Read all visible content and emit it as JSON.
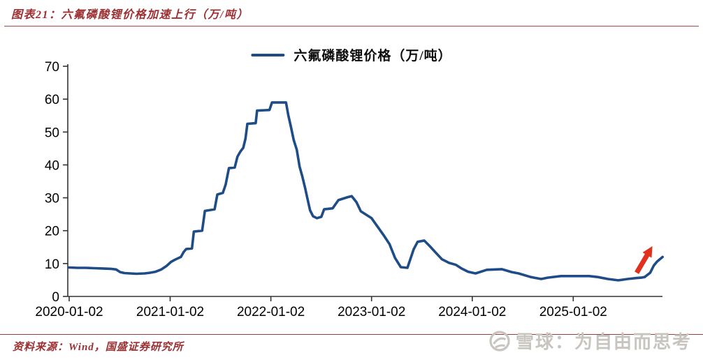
{
  "header": {
    "title": "图表21：六氟磷酸锂价格加速上行（万/吨）"
  },
  "footer": {
    "source": "资料来源：Wind，国盛证券研究所",
    "watermark": "雪球：为自由而思考"
  },
  "colors": {
    "series_line": "#1e4c86",
    "title_red": "#9c2f31",
    "arrow_red": "#e0301e",
    "axis": "#333333",
    "rule_red": "#a04a4a",
    "watermark_gray": "#c8c4bf"
  },
  "chart_data": {
    "type": "line",
    "title": "图表21：六氟磷酸锂价格加速上行（万/吨）",
    "legend": "六氟磷酸锂价格（万/吨）",
    "legend_position": "top-center",
    "grid": false,
    "ylim": [
      0,
      70
    ],
    "y_ticks": [
      0,
      10,
      20,
      30,
      40,
      50,
      60,
      70
    ],
    "x_ticks": [
      "2020-01-02",
      "2021-01-02",
      "2022-01-02",
      "2023-01-02",
      "2024-01-02",
      "2025-01-02"
    ],
    "series": [
      {
        "name": "六氟磷酸锂价格（万/吨）",
        "points": [
          [
            "2020-01-02",
            8.8
          ],
          [
            "2020-02-01",
            8.7
          ],
          [
            "2020-03-01",
            8.7
          ],
          [
            "2020-04-01",
            8.6
          ],
          [
            "2020-05-01",
            8.5
          ],
          [
            "2020-06-01",
            8.4
          ],
          [
            "2020-06-20",
            8.2
          ],
          [
            "2020-07-05",
            7.4
          ],
          [
            "2020-07-20",
            7.1
          ],
          [
            "2020-08-10",
            7.0
          ],
          [
            "2020-09-01",
            6.9
          ],
          [
            "2020-10-01",
            7.0
          ],
          [
            "2020-10-20",
            7.2
          ],
          [
            "2020-11-10",
            7.5
          ],
          [
            "2020-12-01",
            8.2
          ],
          [
            "2020-12-20",
            9.3
          ],
          [
            "2021-01-05",
            10.5
          ],
          [
            "2021-01-20",
            11.2
          ],
          [
            "2021-02-10",
            12.0
          ],
          [
            "2021-02-20",
            13.5
          ],
          [
            "2021-03-01",
            14.4
          ],
          [
            "2021-03-22",
            14.6
          ],
          [
            "2021-03-29",
            19.7
          ],
          [
            "2021-04-28",
            20.0
          ],
          [
            "2021-05-08",
            26.0
          ],
          [
            "2021-06-12",
            26.5
          ],
          [
            "2021-06-22",
            31.0
          ],
          [
            "2021-07-12",
            31.5
          ],
          [
            "2021-07-22",
            34.0
          ],
          [
            "2021-08-03",
            39.0
          ],
          [
            "2021-08-24",
            39.2
          ],
          [
            "2021-09-03",
            42.5
          ],
          [
            "2021-09-13",
            44.0
          ],
          [
            "2021-09-24",
            45.2
          ],
          [
            "2021-10-02",
            48.0
          ],
          [
            "2021-10-09",
            52.5
          ],
          [
            "2021-11-08",
            52.7
          ],
          [
            "2021-11-13",
            56.5
          ],
          [
            "2021-12-28",
            56.7
          ],
          [
            "2022-01-06",
            59.0
          ],
          [
            "2022-02-26",
            59.0
          ],
          [
            "2022-03-06",
            55.2
          ],
          [
            "2022-03-16",
            51.5
          ],
          [
            "2022-03-26",
            47.5
          ],
          [
            "2022-04-06",
            44.6
          ],
          [
            "2022-04-16",
            39.5
          ],
          [
            "2022-04-26",
            36.5
          ],
          [
            "2022-05-06",
            33.0
          ],
          [
            "2022-05-14",
            30.0
          ],
          [
            "2022-05-24",
            26.2
          ],
          [
            "2022-06-04",
            24.4
          ],
          [
            "2022-06-18",
            23.8
          ],
          [
            "2022-07-04",
            24.2
          ],
          [
            "2022-07-14",
            26.5
          ],
          [
            "2022-08-14",
            26.8
          ],
          [
            "2022-09-04",
            29.3
          ],
          [
            "2022-10-08",
            30.2
          ],
          [
            "2022-10-22",
            30.5
          ],
          [
            "2022-11-08",
            28.7
          ],
          [
            "2022-11-24",
            25.9
          ],
          [
            "2022-12-20",
            24.5
          ],
          [
            "2023-01-02",
            23.8
          ],
          [
            "2023-01-24",
            21.2
          ],
          [
            "2023-02-14",
            18.7
          ],
          [
            "2023-03-08",
            15.9
          ],
          [
            "2023-03-28",
            11.7
          ],
          [
            "2023-04-18",
            8.9
          ],
          [
            "2023-05-12",
            8.7
          ],
          [
            "2023-05-24",
            11.7
          ],
          [
            "2023-06-04",
            14.4
          ],
          [
            "2023-06-18",
            16.6
          ],
          [
            "2023-07-12",
            17.0
          ],
          [
            "2023-08-01",
            15.3
          ],
          [
            "2023-08-24",
            13.2
          ],
          [
            "2023-09-14",
            11.3
          ],
          [
            "2023-10-10",
            10.2
          ],
          [
            "2023-11-04",
            9.6
          ],
          [
            "2023-11-24",
            8.5
          ],
          [
            "2023-12-18",
            7.5
          ],
          [
            "2024-01-14",
            7.0
          ],
          [
            "2024-02-24",
            8.1
          ],
          [
            "2024-04-18",
            8.3
          ],
          [
            "2024-05-24",
            7.4
          ],
          [
            "2024-06-18",
            7.0
          ],
          [
            "2024-08-01",
            5.9
          ],
          [
            "2024-09-08",
            5.3
          ],
          [
            "2024-10-01",
            5.7
          ],
          [
            "2024-11-18",
            6.2
          ],
          [
            "2025-03-01",
            6.2
          ],
          [
            "2025-04-01",
            5.9
          ],
          [
            "2025-05-08",
            5.3
          ],
          [
            "2025-06-14",
            4.9
          ],
          [
            "2025-07-18",
            5.3
          ],
          [
            "2025-08-20",
            5.6
          ],
          [
            "2025-09-05",
            5.7
          ],
          [
            "2025-09-18",
            5.9
          ],
          [
            "2025-10-08",
            7.2
          ],
          [
            "2025-10-21",
            9.4
          ],
          [
            "2025-11-02",
            10.6
          ],
          [
            "2025-11-22",
            12.0
          ]
        ]
      }
    ],
    "annotations": [
      {
        "type": "arrow",
        "from": [
          "2025-08-20",
          7.2
        ],
        "to": [
          "2025-10-16",
          15.3
        ],
        "color": "#e0301e"
      }
    ]
  }
}
